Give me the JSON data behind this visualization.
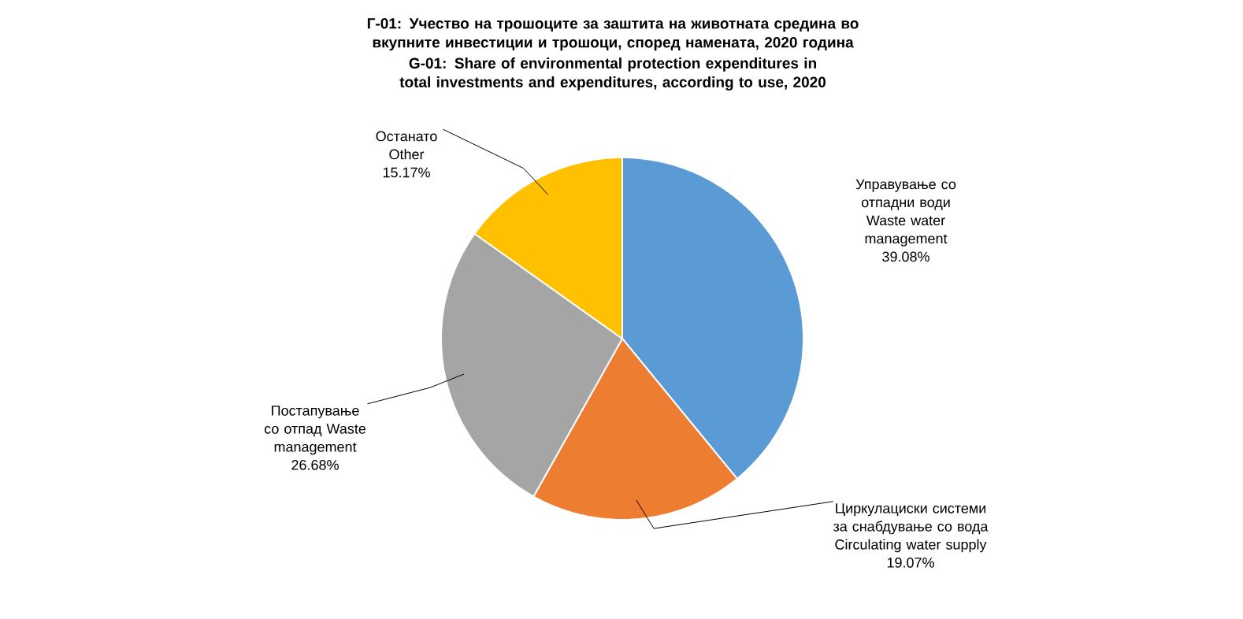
{
  "chart_data": {
    "type": "pie",
    "title": "Г-01: Учество на трошоците за заштита на животната средина во вкупните инвестиции и трошоци, според намената, 2020 година",
    "subtitle": "G-01: Share of environmental protection expenditures in total investments and expenditures, according to use, 2020",
    "categories": [
      "Управување со отпадни води Waste water management",
      "Циркулациски системи за снабдување со вода Circulating water supply",
      "Постапување со отпад Waste management",
      "Останато Other"
    ],
    "values": [
      39.08,
      19.07,
      26.68,
      15.17
    ],
    "colors": [
      "#5b9bd5",
      "#ed7d31",
      "#a5a5a5",
      "#ffc000"
    ],
    "value_labels": [
      "39.08%",
      "19.07%",
      "26.68%",
      "15.17%"
    ]
  }
}
